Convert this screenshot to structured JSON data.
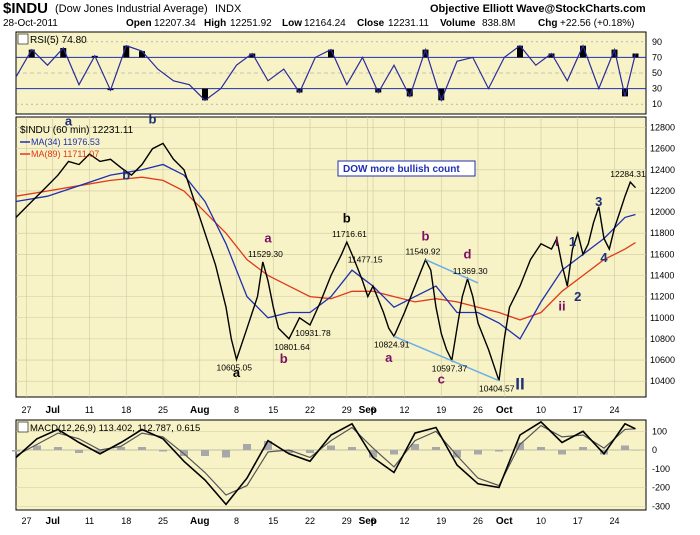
{
  "header": {
    "symbol": "$INDU",
    "name": "(Dow Jones Industrial Average)",
    "exchange": "INDX",
    "brand": "Objective Elliott Wave@StockCharts.com",
    "date": "28-Oct-2011",
    "open_label": "Open",
    "open": "12207.34",
    "high_label": "High",
    "high": "12251.92",
    "low_label": "Low",
    "low": "12164.24",
    "close_label": "Close",
    "close": "12231.11",
    "volume_label": "Volume",
    "volume": "838.8M",
    "chg_label": "Chg",
    "chg": "+22.56 (+0.18%)"
  },
  "colors": {
    "panel_bg": "#f7f3c6",
    "price": "#000000",
    "ma34": "#1f2fb0",
    "ma89": "#e03a1a",
    "wave_black": "#000000",
    "wave_navy": "#1f2f7a",
    "wave_purple": "#7a1060",
    "trendline": "#6aaee8",
    "rsi": "#2a2aa0",
    "macd_hist": "#a8a8a8"
  },
  "rsi": {
    "label": "RSI(5) 74.80",
    "ticks": [
      "90",
      "70",
      "50",
      "30",
      "10"
    ],
    "levels": [
      90,
      70,
      50,
      30,
      10
    ]
  },
  "price_panel": {
    "title": "$INDU (60 min) 12231.11",
    "ma34_label": "MA(34) 11976.53",
    "ma89_label": "MA(89) 11711.07",
    "count_box": "DOW more bullish count",
    "y_ticks": [
      "12800",
      "12600",
      "12400",
      "12200",
      "12000",
      "11800",
      "11600",
      "11400",
      "11200",
      "11000",
      "10800",
      "10600",
      "10400"
    ],
    "y_values": [
      12800,
      12600,
      12400,
      12200,
      12000,
      11800,
      11600,
      11400,
      11200,
      11000,
      10800,
      10600,
      10400
    ],
    "value_labels": [
      {
        "text": "10605.05",
        "x": 42,
        "y": 10605
      },
      {
        "text": "11529.30",
        "x": 48,
        "y": 11529
      },
      {
        "text": "10801.64",
        "x": 53,
        "y": 10801
      },
      {
        "text": "10931.78",
        "x": 57,
        "y": 10931
      },
      {
        "text": "11716.61",
        "x": 64,
        "y": 11716
      },
      {
        "text": "11477.15",
        "x": 67,
        "y": 11477
      },
      {
        "text": "10824.91",
        "x": 72,
        "y": 10824
      },
      {
        "text": "11549.92",
        "x": 78,
        "y": 11549
      },
      {
        "text": "10597.37",
        "x": 83,
        "y": 10597
      },
      {
        "text": "11369.30",
        "x": 87,
        "y": 11369
      },
      {
        "text": "10404.57",
        "x": 92,
        "y": 10404
      },
      {
        "text": "12284.31",
        "x": 117,
        "y": 12284
      }
    ],
    "wave_labels": [
      {
        "text": "a",
        "x": 10,
        "y": 12820,
        "color": "navy"
      },
      {
        "text": "b",
        "x": 26,
        "y": 12840,
        "color": "navy"
      },
      {
        "text": "b",
        "x": 21,
        "y": 12310,
        "color": "navy"
      },
      {
        "text": "a",
        "x": 42,
        "y": 10440,
        "color": "black"
      },
      {
        "text": "a",
        "x": 48,
        "y": 11710,
        "color": "purple"
      },
      {
        "text": "b",
        "x": 51,
        "y": 10570,
        "color": "purple"
      },
      {
        "text": "b",
        "x": 63,
        "y": 11900,
        "color": "black"
      },
      {
        "text": "a",
        "x": 71,
        "y": 10580,
        "color": "purple"
      },
      {
        "text": "b",
        "x": 78,
        "y": 11730,
        "color": "purple"
      },
      {
        "text": "d",
        "x": 86,
        "y": 11560,
        "color": "purple"
      },
      {
        "text": "c",
        "x": 81,
        "y": 10380,
        "color": "purple"
      },
      {
        "text": "II",
        "x": 96,
        "y": 10320,
        "color": "navy"
      },
      {
        "text": "i",
        "x": 103,
        "y": 11680,
        "color": "purple"
      },
      {
        "text": "1",
        "x": 106,
        "y": 11680,
        "color": "navy"
      },
      {
        "text": "ii",
        "x": 104,
        "y": 11070,
        "color": "purple"
      },
      {
        "text": "2",
        "x": 107,
        "y": 11160,
        "color": "navy"
      },
      {
        "text": "3",
        "x": 111,
        "y": 12060,
        "color": "navy"
      },
      {
        "text": "4",
        "x": 112,
        "y": 11530,
        "color": "navy"
      }
    ]
  },
  "macd": {
    "label": "MACD(12,26,9) 113.402, 112.787, 0.615",
    "ticks": [
      "100",
      "0",
      "-100",
      "-200",
      "-300"
    ],
    "levels": [
      100,
      0,
      -100,
      -200,
      -300
    ]
  },
  "x_axis": {
    "labels": [
      "27",
      "Jul",
      "11",
      "18",
      "25",
      "Aug",
      "8",
      "15",
      "22",
      "29",
      "Sep",
      "6",
      "12",
      "19",
      "26",
      "Oct",
      "10",
      "17",
      "24"
    ],
    "positions": [
      2,
      7,
      14,
      21,
      28,
      35,
      42,
      49,
      56,
      63,
      67,
      68,
      74,
      81,
      88,
      93,
      100,
      107,
      114
    ]
  },
  "chart_data": {
    "type": "line",
    "title": "$INDU (Dow Jones Industrial Average) 60 min",
    "x_domain": [
      0,
      120
    ],
    "ylim": [
      10250,
      12900
    ],
    "series": [
      {
        "name": "$INDU (60 min)",
        "x": [
          0,
          2,
          4,
          6,
          8,
          10,
          12,
          14,
          16,
          18,
          20,
          22,
          24,
          26,
          28,
          30,
          32,
          34,
          36,
          38,
          40,
          41,
          42,
          44,
          46,
          47,
          48,
          49,
          50,
          52,
          54,
          56,
          58,
          60,
          62,
          63,
          64,
          65,
          66,
          67,
          68,
          70,
          71,
          72,
          74,
          76,
          78,
          79,
          80,
          81,
          82,
          83,
          84,
          85,
          86,
          87,
          88,
          90,
          91,
          92,
          93,
          94,
          96,
          98,
          100,
          102,
          103,
          104,
          105,
          106,
          107,
          108,
          109,
          110,
          111,
          112,
          113,
          114,
          115,
          116,
          117,
          118
        ],
        "y": [
          11950,
          12050,
          12150,
          12250,
          12350,
          12480,
          12450,
          12550,
          12480,
          12500,
          12420,
          12350,
          12450,
          12600,
          12650,
          12500,
          12400,
          12100,
          11800,
          11500,
          11100,
          10800,
          10605,
          10900,
          11200,
          11529,
          11350,
          11100,
          10900,
          10801,
          11000,
          10931,
          11150,
          11400,
          11600,
          11716,
          11600,
          11477,
          11350,
          11200,
          11300,
          11050,
          10900,
          10824,
          11050,
          11300,
          11549,
          11450,
          11100,
          10850,
          10700,
          10597,
          10900,
          11200,
          11369,
          11200,
          10950,
          10700,
          10550,
          10404,
          10800,
          11100,
          11300,
          11550,
          11700,
          11650,
          11750,
          11500,
          11300,
          11650,
          11800,
          11600,
          11700,
          11900,
          12050,
          11750,
          11650,
          11850,
          12000,
          12150,
          12284,
          12231
        ]
      },
      {
        "name": "MA(34)",
        "x": [
          0,
          6,
          12,
          18,
          24,
          28,
          32,
          36,
          40,
          44,
          48,
          52,
          56,
          60,
          64,
          68,
          72,
          76,
          80,
          84,
          88,
          92,
          96,
          100,
          104,
          108,
          112,
          116,
          118
        ],
        "y": [
          12100,
          12150,
          12250,
          12350,
          12400,
          12450,
          12350,
          12100,
          11700,
          11200,
          11000,
          11050,
          11050,
          11200,
          11450,
          11300,
          11100,
          11200,
          11300,
          11050,
          11050,
          10950,
          10800,
          11150,
          11450,
          11600,
          11750,
          11950,
          11977
        ]
      },
      {
        "name": "MA(89)",
        "x": [
          0,
          6,
          12,
          18,
          24,
          28,
          32,
          36,
          40,
          44,
          48,
          52,
          56,
          60,
          64,
          68,
          72,
          76,
          80,
          84,
          88,
          92,
          96,
          100,
          104,
          108,
          112,
          116,
          118
        ],
        "y": [
          12150,
          12200,
          12250,
          12300,
          12330,
          12300,
          12200,
          12000,
          11800,
          11550,
          11400,
          11300,
          11200,
          11180,
          11250,
          11250,
          11200,
          11150,
          11180,
          11150,
          11100,
          11050,
          10980,
          11050,
          11250,
          11400,
          11550,
          11650,
          11711
        ]
      },
      {
        "name": "RSI(5)",
        "x": [
          0,
          3,
          6,
          9,
          12,
          15,
          18,
          21,
          24,
          27,
          30,
          33,
          36,
          39,
          42,
          45,
          48,
          51,
          54,
          57,
          60,
          63,
          66,
          69,
          72,
          75,
          78,
          81,
          84,
          87,
          90,
          93,
          96,
          99,
          102,
          105,
          108,
          111,
          114,
          116,
          118
        ],
        "y": [
          45,
          80,
          60,
          82,
          35,
          72,
          28,
          85,
          78,
          55,
          40,
          35,
          15,
          30,
          60,
          75,
          40,
          55,
          25,
          70,
          80,
          35,
          70,
          25,
          60,
          20,
          80,
          15,
          65,
          70,
          30,
          70,
          85,
          60,
          75,
          40,
          85,
          30,
          80,
          20,
          75
        ]
      },
      {
        "name": "MACD",
        "x": [
          0,
          4,
          8,
          12,
          16,
          20,
          24,
          28,
          32,
          36,
          40,
          44,
          48,
          52,
          56,
          60,
          64,
          68,
          72,
          76,
          80,
          84,
          88,
          92,
          96,
          100,
          104,
          108,
          112,
          116,
          118
        ],
        "y": [
          -40,
          60,
          110,
          40,
          -20,
          40,
          110,
          60,
          -60,
          -160,
          -290,
          -150,
          50,
          -20,
          -60,
          80,
          140,
          -40,
          -120,
          90,
          120,
          -80,
          -180,
          -200,
          80,
          150,
          40,
          100,
          -20,
          140,
          113
        ]
      },
      {
        "name": "Signal",
        "x": [
          0,
          4,
          8,
          12,
          16,
          20,
          24,
          28,
          32,
          36,
          40,
          44,
          48,
          52,
          56,
          60,
          64,
          68,
          72,
          76,
          80,
          84,
          88,
          92,
          96,
          100,
          104,
          108,
          112,
          116,
          118
        ],
        "y": [
          -30,
          30,
          90,
          60,
          0,
          20,
          90,
          70,
          -20,
          -120,
          -240,
          -190,
          -10,
          0,
          -40,
          50,
          120,
          10,
          -90,
          50,
          100,
          -30,
          -150,
          -190,
          30,
          130,
          70,
          80,
          10,
          110,
          113
        ]
      }
    ],
    "panels": {
      "rsi": {
        "ylim": [
          0,
          100
        ],
        "title": "RSI(5) 74.80"
      },
      "price": {
        "ylim": [
          10250,
          12900
        ],
        "title": "$INDU (60 min) 12231.11"
      },
      "macd": {
        "ylim": [
          -320,
          160
        ],
        "title": "MACD(12,26,9) 113.402, 112.787, 0.615"
      }
    }
  }
}
